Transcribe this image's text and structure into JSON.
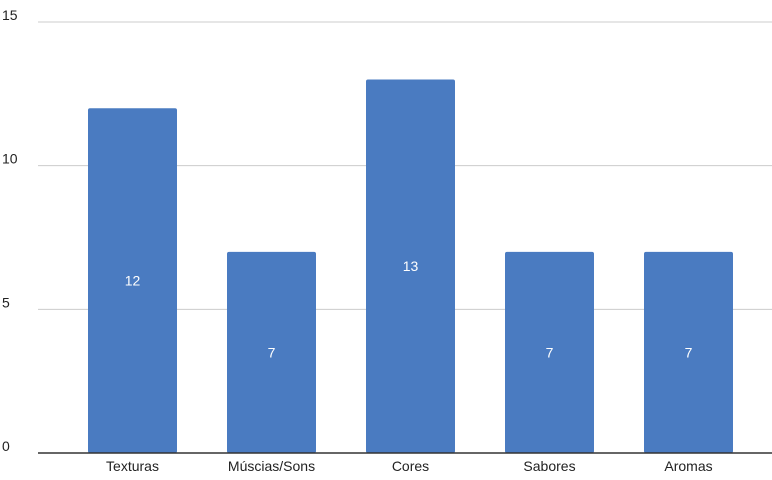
{
  "chart_data": {
    "type": "bar",
    "title": "",
    "xlabel": "",
    "ylabel": "",
    "categories": [
      "Texturas",
      "Múscias/Sons",
      "Cores",
      "Sabores",
      "Aromas"
    ],
    "values": [
      12,
      7,
      13,
      7,
      7
    ],
    "data_labels": [
      "12",
      "7",
      "13",
      "7",
      "7"
    ],
    "ylim": [
      0,
      15
    ],
    "yticks": [
      0,
      5,
      10,
      15
    ],
    "ytick_labels": [
      "0",
      "5",
      "10",
      "15"
    ],
    "grid": true,
    "legend": "none",
    "bar_color": "#4a7bc1",
    "label_color": "#ffffff",
    "axis_text_color": "#222222",
    "gridline_color": "#cccccc",
    "baseline_color": "#333333"
  }
}
